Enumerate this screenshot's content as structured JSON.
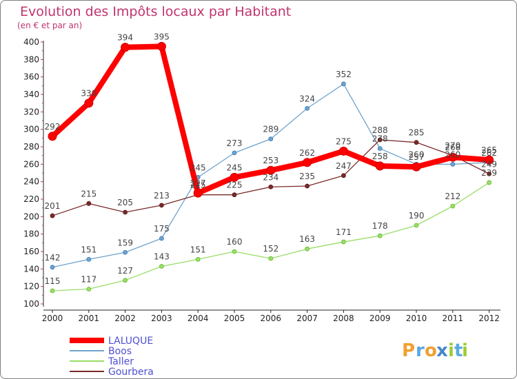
{
  "chart_data": {
    "type": "line",
    "title": "Evolution des Impôts locaux par Habitant",
    "subtitle": "(en € et par an)",
    "categories": [
      "2000",
      "2001",
      "2002",
      "2003",
      "2004",
      "2005",
      "2006",
      "2007",
      "2008",
      "2009",
      "2010",
      "2011",
      "2012"
    ],
    "ylim": [
      100,
      400
    ],
    "yticks": [
      100,
      120,
      140,
      160,
      180,
      200,
      220,
      240,
      260,
      280,
      300,
      320,
      340,
      360,
      380,
      400
    ],
    "grid": false,
    "series": [
      {
        "name": "LALUQUE",
        "color": "#ff0000",
        "values": [
          292,
          330,
          394,
          395,
          227,
          245,
          253,
          262,
          275,
          258,
          257,
          268,
          265
        ]
      },
      {
        "name": "Boos",
        "color": "#6fa3cc",
        "values": [
          142,
          151,
          159,
          175,
          245,
          273,
          289,
          324,
          352,
          278,
          260,
          260,
          262
        ]
      },
      {
        "name": "Taller",
        "color": "#99dd66",
        "values": [
          115,
          117,
          127,
          143,
          151,
          160,
          152,
          163,
          171,
          178,
          190,
          212,
          239
        ]
      },
      {
        "name": "Gourbera",
        "color": "#7a2a2a",
        "values": [
          201,
          215,
          205,
          213,
          225,
          225,
          234,
          235,
          247,
          288,
          285,
          270,
          249
        ]
      }
    ]
  },
  "legend": {
    "items": [
      "LALUQUE",
      "Boos",
      "Taller",
      "Gourbera"
    ]
  },
  "logo": {
    "text": "Proxiti",
    "letters": [
      "P",
      "r",
      "o",
      "x",
      "i",
      "t",
      "i"
    ],
    "colors": [
      "#f0a030",
      "#5aa9e0",
      "#f0a030",
      "#4488cc",
      "#9acd32",
      "#5aa9e0",
      "#9acd32"
    ]
  }
}
